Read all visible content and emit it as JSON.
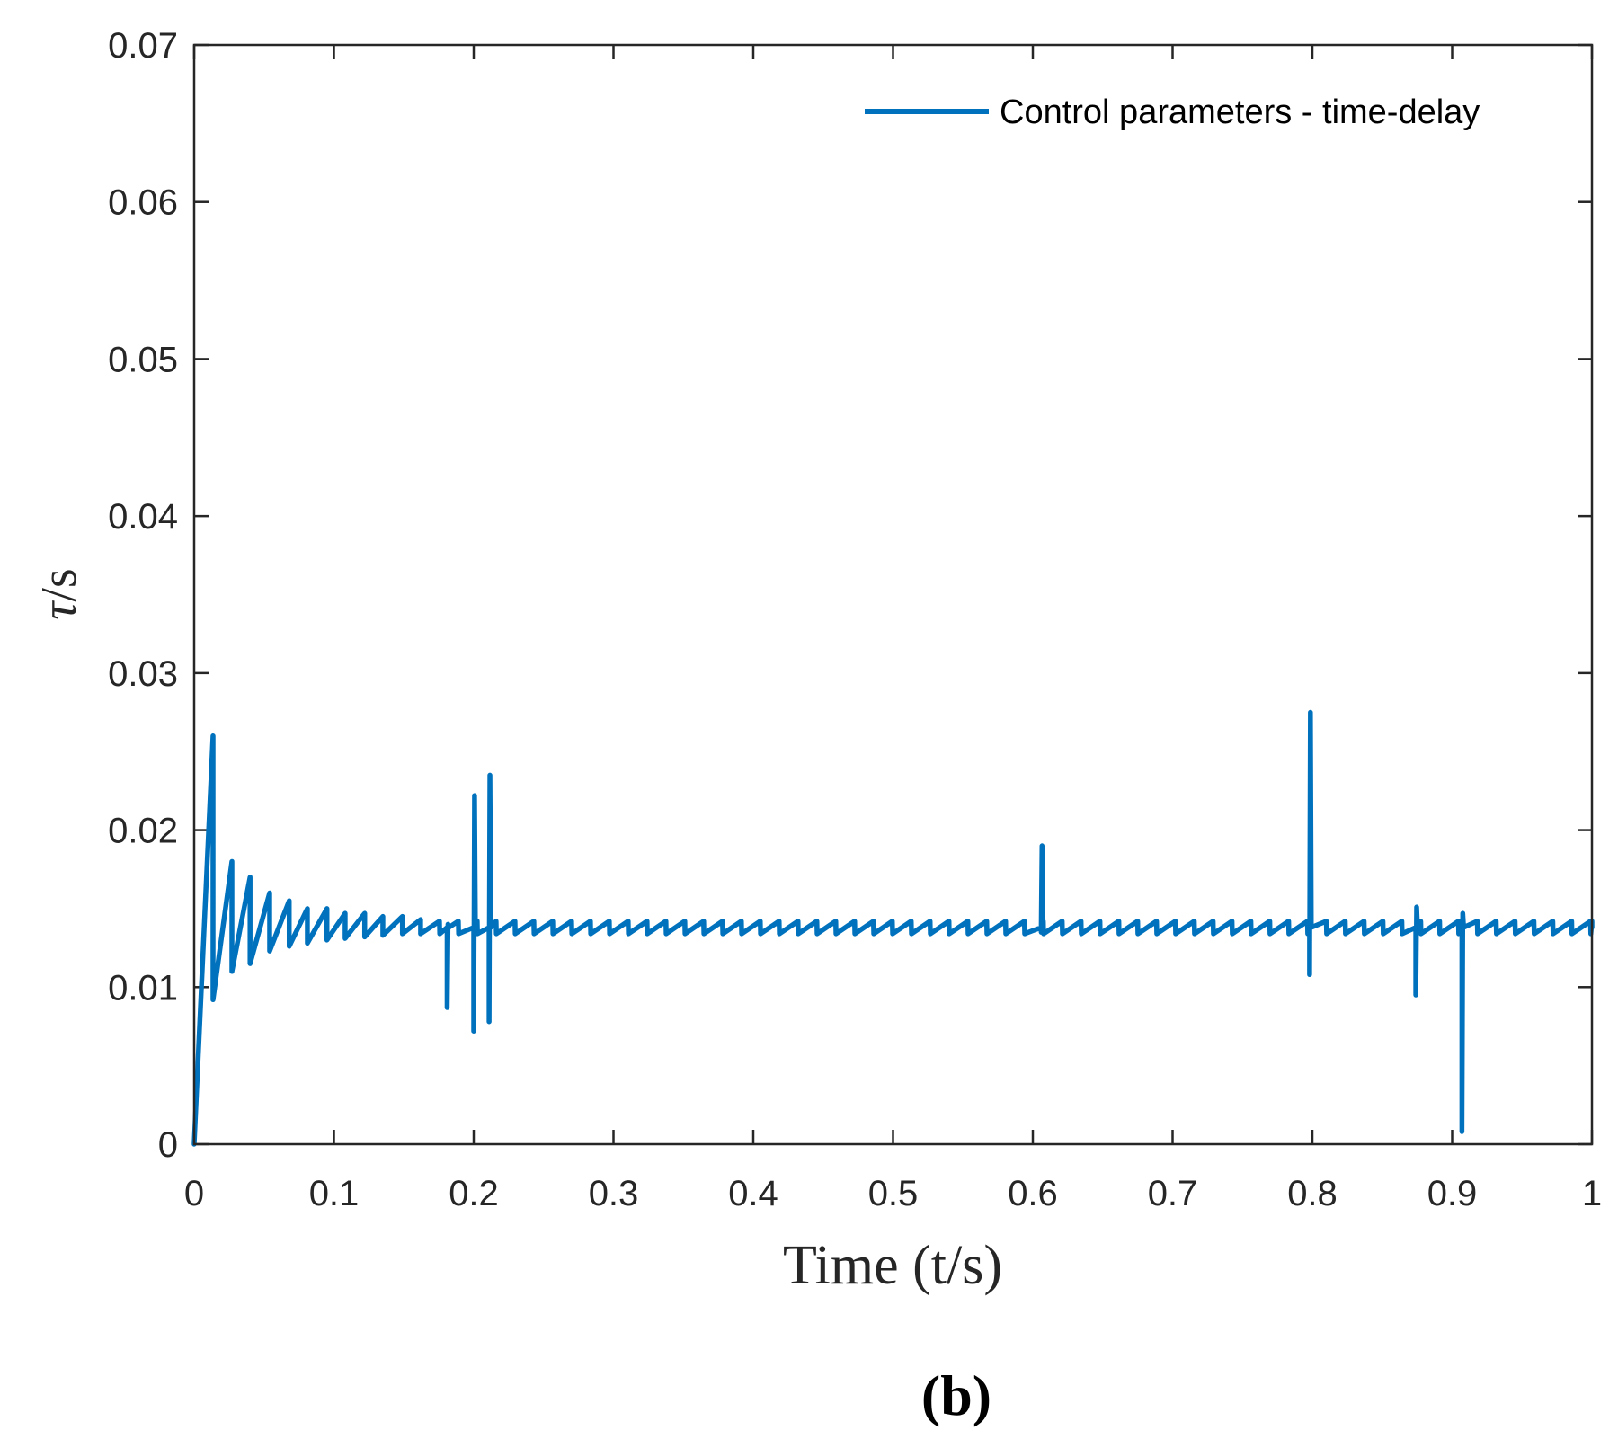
{
  "chart_data": {
    "type": "line",
    "title": "",
    "xlabel": "Time (t/s)",
    "ylabel_symbol": "τ",
    "ylabel_unit": "/s",
    "panel_label": "(b)",
    "xlim": [
      0,
      1
    ],
    "ylim": [
      0,
      0.07
    ],
    "x_ticks": [
      0,
      0.1,
      0.2,
      0.3,
      0.4,
      0.5,
      0.6,
      0.7,
      0.8,
      0.9,
      1
    ],
    "x_tick_labels": [
      "0",
      "0.1",
      "0.2",
      "0.3",
      "0.4",
      "0.5",
      "0.6",
      "0.7",
      "0.8",
      "0.9",
      "1"
    ],
    "y_ticks": [
      0,
      0.01,
      0.02,
      0.03,
      0.04,
      0.05,
      0.06,
      0.07
    ],
    "y_tick_labels": [
      "0",
      "0.01",
      "0.02",
      "0.03",
      "0.04",
      "0.05",
      "0.06",
      "0.07"
    ],
    "grid": false,
    "legend_position": "top-right",
    "series": [
      {
        "name": "Control parameters - time-delay",
        "color": "#0072BD",
        "oscillation_period": 0.0135,
        "decay_envelope": [
          [
            0.0,
            0.0
          ],
          [
            0.0135,
            0.026
          ],
          [
            0.027,
            0.018
          ],
          [
            0.04,
            0.017
          ],
          [
            0.054,
            0.016
          ],
          [
            0.068,
            0.0155
          ],
          [
            0.081,
            0.015
          ],
          [
            0.095,
            0.015
          ],
          [
            0.108,
            0.0147
          ],
          [
            0.122,
            0.0147
          ],
          [
            0.135,
            0.0145
          ],
          [
            0.149,
            0.0145
          ],
          [
            0.162,
            0.0143
          ]
        ],
        "decay_troughs": [
          [
            0.0135,
            0.0092
          ],
          [
            0.027,
            0.011
          ],
          [
            0.04,
            0.0115
          ],
          [
            0.054,
            0.0123
          ],
          [
            0.068,
            0.0126
          ],
          [
            0.081,
            0.0128
          ],
          [
            0.095,
            0.013
          ],
          [
            0.108,
            0.0131
          ],
          [
            0.122,
            0.0132
          ],
          [
            0.135,
            0.0133
          ],
          [
            0.149,
            0.0134
          ],
          [
            0.162,
            0.0134
          ]
        ],
        "steady_level": 0.0138,
        "ripple_amplitude": 0.0004,
        "spikes": [
          {
            "t": 0.181,
            "low": 0.0087,
            "high": 0.014
          },
          {
            "t": 0.2,
            "low": 0.0072,
            "high": 0.0222
          },
          {
            "t": 0.211,
            "low": 0.0078,
            "high": 0.0235
          },
          {
            "t": 0.606,
            "low": 0.0135,
            "high": 0.019
          },
          {
            "t": 0.798,
            "low": 0.0108,
            "high": 0.0275
          },
          {
            "t": 0.874,
            "low": 0.0095,
            "high": 0.0151
          },
          {
            "t": 0.907,
            "low": 0.0008,
            "high": 0.0147
          }
        ]
      }
    ]
  }
}
